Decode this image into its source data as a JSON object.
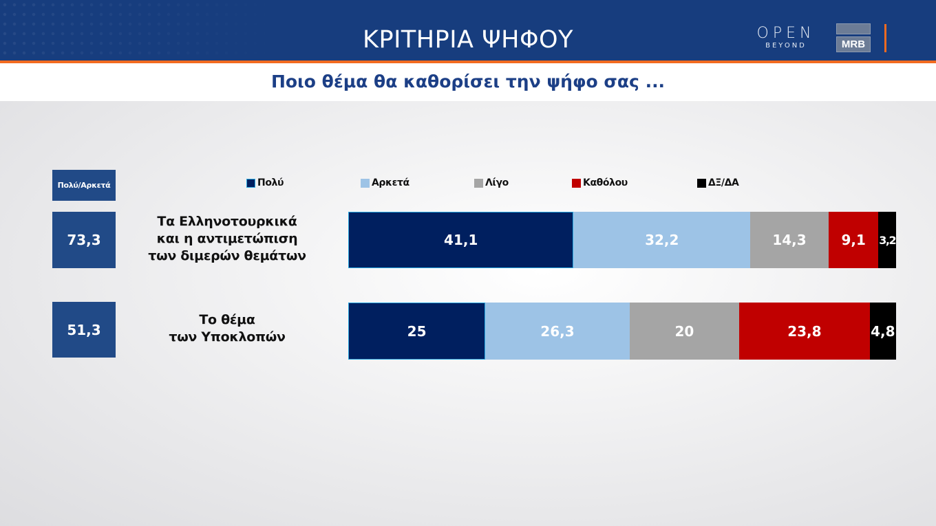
{
  "header": {
    "title": "ΚΡΙΤΗΡΙΑ ΨΗΦΟΥ",
    "logo_open_main": "OPEN",
    "logo_open_sub": "BEYOND",
    "logo_mrb": "MRB"
  },
  "subtitle": "Ποιο θέμα θα καθορίσει την ψήφο σας ...",
  "side": {
    "header": "Πολύ/Αρκετά",
    "values": [
      "73,3",
      "51,3"
    ]
  },
  "colors": {
    "header_bg": "#173d7e",
    "accent_orange": "#f26b21",
    "subtitle_text": "#1c3f86",
    "side_box": "#214a87",
    "poly": "#001f5f",
    "arketa": "#9dc3e6",
    "ligo": "#a5a5a5",
    "katholou": "#c00000",
    "dxda": "#000000"
  },
  "chart_data": {
    "type": "bar",
    "orientation": "horizontal",
    "stacked": true,
    "title": "Ποιο θέμα θα καθορίσει την ψήφο σας ...",
    "categories": [
      "Τα Ελληνοτουρκικά και η αντιμετώπιση των διμερών θεμάτων",
      "Το θέμα των Υποκλοπών"
    ],
    "category_lines": [
      [
        "Τα Ελληνοτουρκικά",
        "και η αντιμετώπιση",
        "των διμερών θεμάτων"
      ],
      [
        "Το θέμα",
        "των Υποκλοπών"
      ]
    ],
    "series": [
      {
        "name": "Πολύ",
        "color": "#001f5f",
        "values": [
          41.1,
          25
        ],
        "labels": [
          "41,1",
          "25"
        ]
      },
      {
        "name": "Αρκετά",
        "color": "#9dc3e6",
        "values": [
          32.2,
          26.3
        ],
        "labels": [
          "32,2",
          "26,3"
        ]
      },
      {
        "name": "Λίγο",
        "color": "#a5a5a5",
        "values": [
          14.3,
          20
        ],
        "labels": [
          "14,3",
          "20"
        ]
      },
      {
        "name": "Καθόλου",
        "color": "#c00000",
        "values": [
          9.1,
          23.8
        ],
        "labels": [
          "9,1",
          "23,8"
        ]
      },
      {
        "name": "ΔΞ/ΔΑ",
        "color": "#000000",
        "values": [
          3.2,
          4.8
        ],
        "labels": [
          "3,2",
          "4,8"
        ]
      }
    ],
    "summary_column": {
      "label": "Πολύ/Αρκετά",
      "values": [
        73.3,
        51.3
      ]
    },
    "legend_position": "top",
    "grid": false,
    "xlabel": "",
    "ylabel": ""
  }
}
